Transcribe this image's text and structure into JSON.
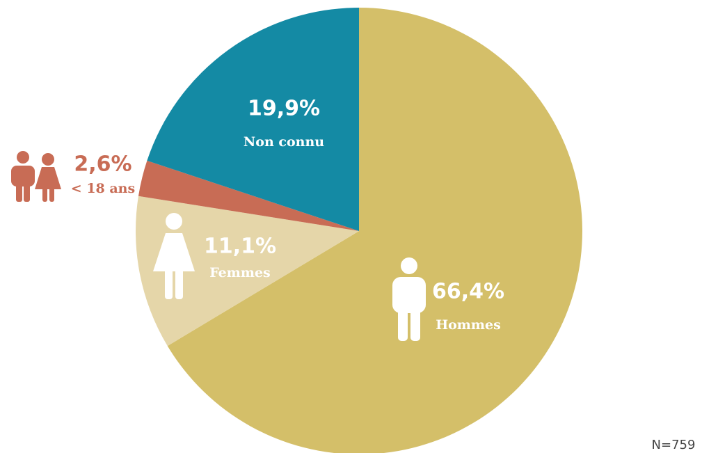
{
  "chart_data": {
    "type": "pie",
    "categories": [
      "Hommes",
      "Femmes",
      "< 18 ans",
      "Non connu"
    ],
    "values": [
      66.4,
      11.1,
      2.6,
      19.9
    ],
    "value_labels": [
      "66,4%",
      "11,1%",
      "2,6%",
      "19,9%"
    ],
    "colors": [
      "#d4bf69",
      "#e5d6a9",
      "#c86c55",
      "#148aa4"
    ],
    "annotation": "N=759"
  }
}
